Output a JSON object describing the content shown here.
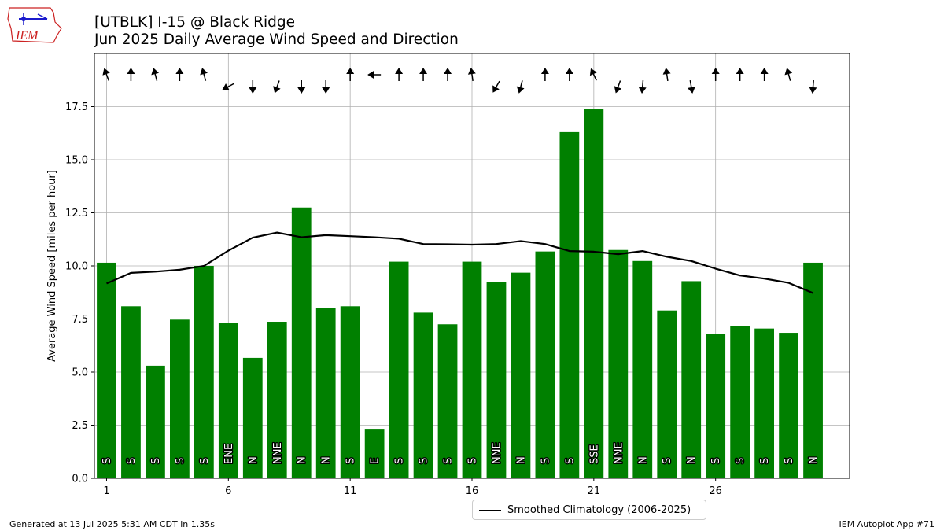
{
  "title": "[UTBLK] I-15 @ Black Ridge",
  "subtitle": "Jun 2025 Daily Average Wind Speed and Direction",
  "ylabel": "Average Wind Speed [miles per hour]",
  "footer_left": "Generated at 13 Jul 2025 5:31 AM CDT in 1.35s",
  "footer_right": "IEM Autoplot App #71",
  "logo_text": "IEM",
  "colors": {
    "bar": "#008000",
    "climo": "#000000",
    "grid": "#b0b0b0",
    "logo": "#cc2222"
  },
  "chart_data": {
    "type": "bar",
    "x": [
      1,
      2,
      3,
      4,
      5,
      6,
      7,
      8,
      9,
      10,
      11,
      12,
      13,
      14,
      15,
      16,
      17,
      18,
      19,
      20,
      21,
      22,
      23,
      24,
      25,
      26,
      27,
      28,
      29,
      30
    ],
    "values": [
      10.15,
      8.1,
      5.3,
      7.47,
      10.0,
      7.3,
      5.67,
      7.37,
      12.75,
      8.02,
      8.1,
      2.33,
      10.2,
      7.8,
      7.25,
      10.2,
      9.23,
      9.68,
      10.68,
      16.3,
      17.37,
      10.75,
      10.23,
      7.9,
      9.28,
      6.8,
      7.17,
      7.05,
      6.85,
      10.15
    ],
    "directions": [
      "S",
      "S",
      "S",
      "S",
      "S",
      "ENE",
      "N",
      "NNE",
      "N",
      "N",
      "S",
      "E",
      "S",
      "S",
      "S",
      "S",
      "NNE",
      "N",
      "S",
      "S",
      "SSE",
      "NNE",
      "N",
      "S",
      "N",
      "S",
      "S",
      "S",
      "S",
      "N"
    ],
    "arrow_angles_deg": [
      -20,
      0,
      -15,
      0,
      -15,
      -118,
      180,
      200,
      180,
      180,
      0,
      -90,
      0,
      0,
      0,
      -8,
      210,
      195,
      0,
      0,
      -25,
      200,
      185,
      -8,
      170,
      0,
      0,
      0,
      -15,
      185
    ],
    "series": [
      {
        "name": "Smoothed Climatology (2006-2025)",
        "values": [
          9.17,
          9.67,
          9.73,
          9.82,
          10.0,
          10.72,
          11.33,
          11.57,
          11.35,
          11.45,
          11.4,
          11.35,
          11.28,
          11.03,
          11.02,
          11.0,
          11.03,
          11.17,
          11.03,
          10.7,
          10.67,
          10.55,
          10.7,
          10.43,
          10.23,
          9.87,
          9.55,
          9.4,
          9.2,
          8.72
        ]
      }
    ],
    "xticks": [
      1,
      6,
      11,
      16,
      21,
      26
    ],
    "xlim": [
      0.5,
      31.5
    ],
    "ylim": [
      0,
      20
    ],
    "yticks": [
      0,
      2.5,
      5,
      7.5,
      10,
      12.5,
      15,
      17.5
    ],
    "ytick_labels": [
      "0.0",
      "2.5",
      "5.0",
      "7.5",
      "10.0",
      "12.5",
      "15.0",
      "17.5"
    ],
    "grid": true,
    "legend_placement": "bottom-center"
  }
}
